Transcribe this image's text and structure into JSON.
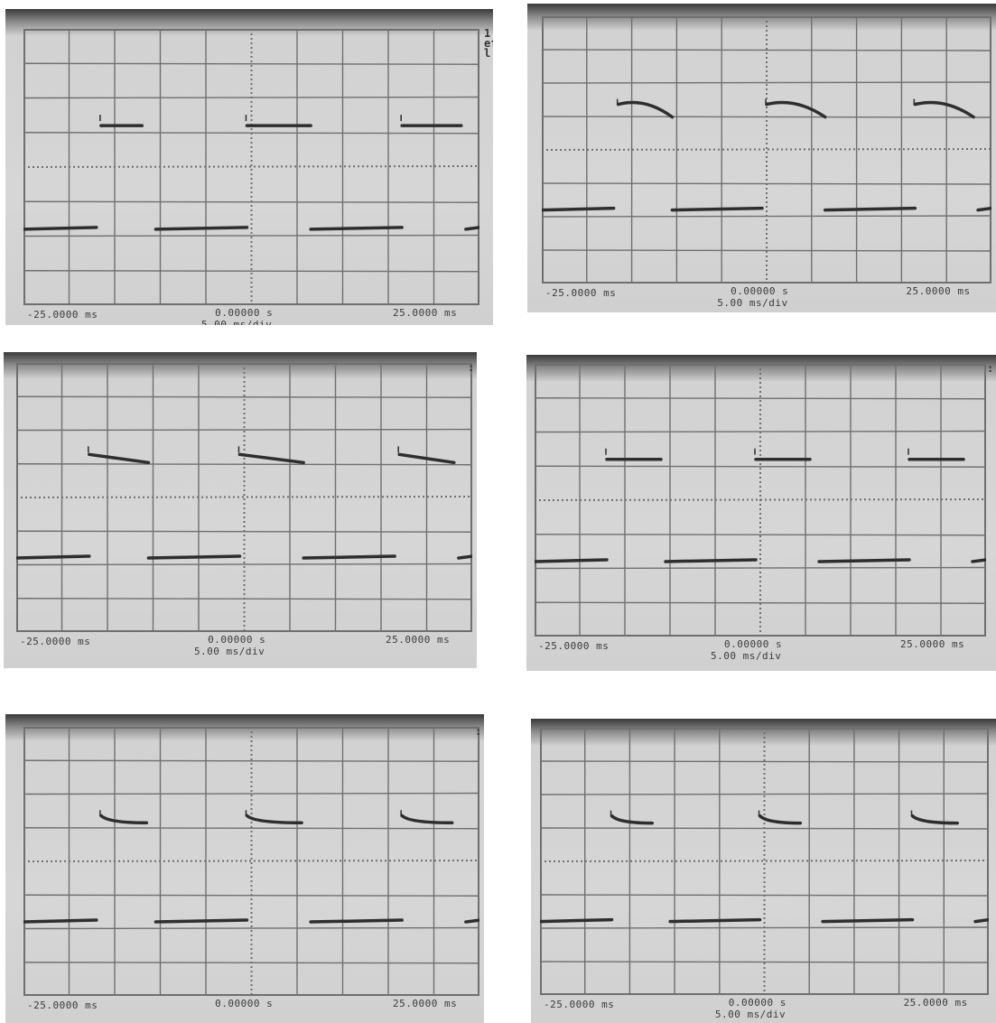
{
  "panels": [
    {
      "name": "top-left",
      "left_label": "-25.0000 ms",
      "center_label": "0.00000 s",
      "right_label": "25.0000 ms",
      "timebase": "5.00 ms/div",
      "edge_text": [
        "1",
        "ef",
        "l"
      ],
      "waveform": "flat-high"
    },
    {
      "name": "top-right",
      "left_label": "-25.0000 ms",
      "center_label": "0.00000 s",
      "right_label": "25.0000 ms",
      "timebase": "5.00 ms/div",
      "edge_text": [],
      "waveform": "arched-high"
    },
    {
      "name": "middle-left",
      "left_label": "-25.0000 ms",
      "center_label": "0.00000 s",
      "right_label": "25.0000 ms",
      "timebase": "5.00 ms/div",
      "edge_text": [
        ":"
      ],
      "waveform": "sloped-high"
    },
    {
      "name": "middle-right",
      "left_label": "-25.0000 ms",
      "center_label": "0.00000 s",
      "right_label": "25.0000 ms",
      "timebase": "5.00 ms/div",
      "edge_text": [
        ":"
      ],
      "waveform": "flat-high-short"
    },
    {
      "name": "bottom-left",
      "left_label": "-25.0000 ms",
      "center_label": "0.00000 s",
      "right_label": "25.0000 ms",
      "timebase": "",
      "edge_text": [
        ":"
      ],
      "waveform": "sag-high"
    },
    {
      "name": "bottom-right",
      "left_label": "-25.0000 ms",
      "center_label": "0.00000 s",
      "right_label": "25.0000 ms",
      "timebase": "5.00 ms/div",
      "edge_text": [],
      "waveform": "sag-high-short"
    }
  ],
  "colors": {
    "grid": "#6f6f6f",
    "trace": "#2e2e2e",
    "screen": "#d4d4d4"
  }
}
